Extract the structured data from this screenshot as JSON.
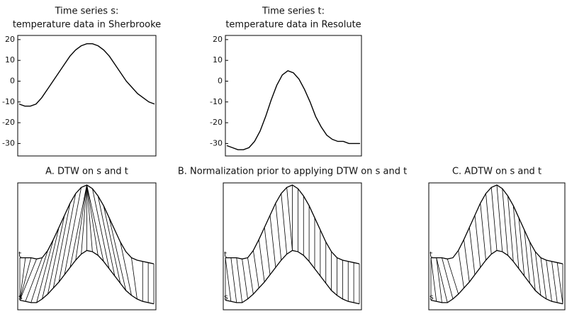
{
  "chart_data": [
    {
      "type": "line",
      "title": "Time series s:",
      "subtitle": "temperature data in Sherbrooke",
      "values": [
        -11,
        -12,
        -12,
        -11,
        -8,
        -4,
        0,
        4,
        8,
        12,
        15,
        17,
        18,
        18,
        17,
        15,
        12,
        8,
        4,
        0,
        -3,
        -6,
        -8,
        -10,
        -11
      ],
      "color": "#000000",
      "ylim": [
        -36,
        22
      ],
      "yticks": [
        20,
        10,
        0,
        -10,
        -20,
        -30
      ]
    },
    {
      "type": "line",
      "title": "Time series t:",
      "subtitle": "temperature data in Resolute",
      "values": [
        -31,
        -32,
        -33,
        -33,
        -32,
        -29,
        -24,
        -17,
        -9,
        -2,
        3,
        5,
        4,
        1,
        -4,
        -10,
        -17,
        -22,
        -26,
        -28,
        -29,
        -29,
        -30,
        -30,
        -30
      ],
      "color": "#000000",
      "ylim": [
        -36,
        22
      ],
      "yticks": [
        20,
        10,
        0,
        -10,
        -20,
        -30
      ]
    },
    {
      "type": "dtw",
      "title": "A. DTW on s and t",
      "ylim": [
        0,
        100
      ],
      "color": "#000000",
      "series": [
        {
          "name": "s",
          "values": [
            5,
            4,
            3,
            3,
            6,
            10,
            15,
            20,
            26,
            32,
            38,
            43,
            46,
            45,
            42,
            37,
            31,
            25,
            19,
            13,
            9,
            6,
            4,
            3,
            2
          ]
        },
        {
          "name": "t",
          "values": [
            40,
            40,
            40,
            39,
            40,
            46,
            55,
            65,
            75,
            85,
            93,
            98,
            100,
            97,
            91,
            83,
            73,
            63,
            53,
            45,
            40,
            38,
            37,
            36,
            35
          ]
        }
      ],
      "matches": [
        [
          0,
          0
        ],
        [
          0,
          1
        ],
        [
          0,
          2
        ],
        [
          0,
          3
        ],
        [
          1,
          4
        ],
        [
          2,
          5
        ],
        [
          3,
          6
        ],
        [
          4,
          7
        ],
        [
          5,
          8
        ],
        [
          6,
          9
        ],
        [
          7,
          10
        ],
        [
          8,
          11
        ],
        [
          9,
          12
        ],
        [
          10,
          12
        ],
        [
          11,
          12
        ],
        [
          12,
          12
        ],
        [
          13,
          12
        ],
        [
          14,
          12
        ],
        [
          15,
          12
        ],
        [
          16,
          13
        ],
        [
          17,
          14
        ],
        [
          18,
          15
        ],
        [
          19,
          16
        ],
        [
          20,
          18
        ],
        [
          21,
          20
        ],
        [
          22,
          22
        ],
        [
          23,
          23
        ],
        [
          24,
          24
        ]
      ]
    },
    {
      "type": "dtw",
      "title": "B. Normalization prior to applying DTW on s and t",
      "ylim": [
        0,
        100
      ],
      "color": "#000000",
      "series": [
        {
          "name": "s",
          "values": [
            5,
            4,
            3,
            3,
            6,
            10,
            15,
            20,
            26,
            32,
            38,
            43,
            46,
            45,
            42,
            37,
            31,
            25,
            19,
            13,
            9,
            6,
            4,
            3,
            2
          ]
        },
        {
          "name": "t",
          "values": [
            40,
            40,
            40,
            39,
            40,
            46,
            55,
            65,
            75,
            85,
            93,
            98,
            100,
            97,
            91,
            83,
            73,
            63,
            53,
            45,
            40,
            38,
            37,
            36,
            35
          ]
        }
      ],
      "matches": [
        [
          0,
          0
        ],
        [
          1,
          0
        ],
        [
          2,
          1
        ],
        [
          3,
          2
        ],
        [
          4,
          3
        ],
        [
          5,
          4
        ],
        [
          6,
          5
        ],
        [
          7,
          6
        ],
        [
          8,
          7
        ],
        [
          9,
          8
        ],
        [
          10,
          9
        ],
        [
          11,
          10
        ],
        [
          12,
          11
        ],
        [
          12,
          12
        ],
        [
          13,
          13
        ],
        [
          14,
          14
        ],
        [
          15,
          15
        ],
        [
          16,
          16
        ],
        [
          17,
          17
        ],
        [
          18,
          18
        ],
        [
          19,
          19
        ],
        [
          20,
          20
        ],
        [
          21,
          21
        ],
        [
          22,
          22
        ],
        [
          23,
          23
        ],
        [
          24,
          24
        ]
      ]
    },
    {
      "type": "dtw",
      "title": "C. ADTW on s and t",
      "ylim": [
        0,
        100
      ],
      "color": "#000000",
      "series": [
        {
          "name": "s",
          "values": [
            5,
            4,
            3,
            3,
            6,
            10,
            15,
            20,
            26,
            32,
            38,
            43,
            46,
            45,
            42,
            37,
            31,
            25,
            19,
            13,
            9,
            6,
            4,
            3,
            2
          ]
        },
        {
          "name": "t",
          "values": [
            40,
            40,
            40,
            39,
            40,
            46,
            55,
            65,
            75,
            85,
            93,
            98,
            100,
            97,
            91,
            83,
            73,
            63,
            53,
            45,
            40,
            38,
            37,
            36,
            35
          ]
        }
      ],
      "matches": [
        [
          0,
          0
        ],
        [
          1,
          0
        ],
        [
          2,
          1
        ],
        [
          3,
          1
        ],
        [
          4,
          2
        ],
        [
          5,
          3
        ],
        [
          6,
          5
        ],
        [
          7,
          6
        ],
        [
          8,
          7
        ],
        [
          9,
          8
        ],
        [
          10,
          9
        ],
        [
          11,
          10
        ],
        [
          12,
          11
        ],
        [
          13,
          12
        ],
        [
          14,
          13
        ],
        [
          15,
          14
        ],
        [
          16,
          15
        ],
        [
          17,
          16
        ],
        [
          18,
          17
        ],
        [
          19,
          18
        ],
        [
          20,
          19
        ],
        [
          21,
          20
        ],
        [
          22,
          21
        ],
        [
          23,
          22
        ],
        [
          24,
          23
        ],
        [
          24,
          24
        ]
      ]
    }
  ]
}
